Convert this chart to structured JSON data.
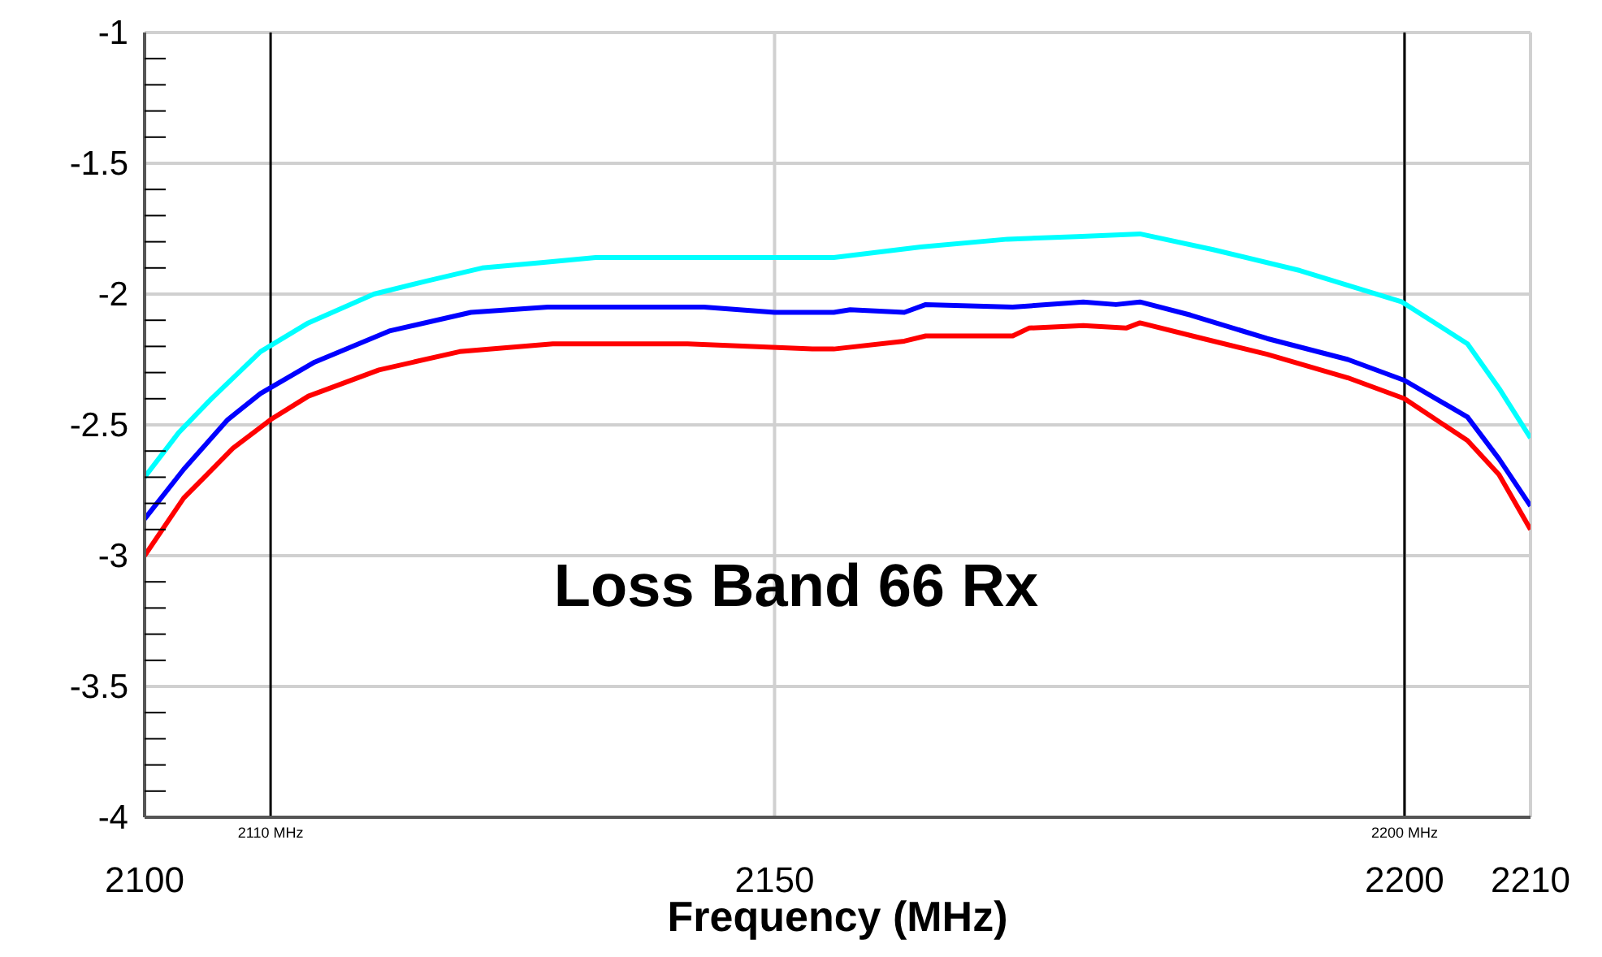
{
  "chart_data": {
    "type": "line",
    "annotations": [
      "Loss Band 66 Rx"
    ],
    "xlabel": "Frequency (MHz)",
    "xlim": [
      2100,
      2210
    ],
    "xticks": [
      2100,
      2150,
      2200,
      2210
    ],
    "ylim": [
      -4,
      -1
    ],
    "yticks": [
      -1,
      {
        "value": -1.1,
        "label": null
      },
      {
        "value": -1.2,
        "label": null
      },
      {
        "value": -1.3,
        "label": null
      },
      {
        "value": -1.4,
        "label": null
      },
      -1.5,
      {
        "value": -1.6,
        "label": null
      },
      {
        "value": -1.7,
        "label": null
      },
      {
        "value": -1.8,
        "label": null
      },
      {
        "value": -1.9,
        "label": null
      },
      -2,
      {
        "value": -2.1,
        "label": null
      },
      {
        "value": -2.2,
        "label": null
      },
      {
        "value": -2.3,
        "label": null
      },
      {
        "value": -2.4,
        "label": null
      },
      -2.5,
      {
        "value": -2.6,
        "label": null
      },
      {
        "value": -2.7,
        "label": null
      },
      {
        "value": -2.8,
        "label": null
      },
      {
        "value": -2.9,
        "label": null
      },
      -3,
      {
        "value": -3.1,
        "label": null
      },
      {
        "value": -3.2,
        "label": null
      },
      {
        "value": -3.3,
        "label": null
      },
      {
        "value": -3.4,
        "label": null
      },
      -3.5,
      {
        "value": -3.6,
        "label": null
      },
      {
        "value": -3.7,
        "label": null
      },
      {
        "value": -3.8,
        "label": null
      },
      {
        "value": -3.9,
        "label": null
      },
      -4
    ],
    "grid": true,
    "legend": false,
    "marker": "none",
    "line_style": "solid",
    "ref_lines": [
      {
        "axis": "x",
        "value": 2110,
        "label": "2110 MHz",
        "color": "#000000"
      },
      {
        "axis": "x",
        "value": 2200,
        "label": "2200 MHz",
        "color": "#000000"
      }
    ],
    "series": [
      {
        "color": "#00ffff",
        "x": [
          2100,
          2102.7,
          2105.3,
          2109.2,
          2113,
          2118.2,
          2122.4,
          2126.8,
          2131.5,
          2135.8,
          2153,
          2154.7,
          2161.6,
          2168.5,
          2174,
          2179,
          2184.8,
          2191.7,
          2199.8,
          2205,
          2207.5,
          2210
        ],
        "values": [
          -2.7,
          -2.53,
          -2.4,
          -2.22,
          -2.11,
          -2.0,
          -1.95,
          -1.9,
          -1.88,
          -1.86,
          -1.86,
          -1.86,
          -1.82,
          -1.79,
          -1.78,
          -1.77,
          -1.83,
          -1.91,
          -2.03,
          -2.19,
          -2.36,
          -2.55
        ]
      },
      {
        "color": "#0000ff",
        "x": [
          2100,
          2103.1,
          2106.6,
          2109.2,
          2113.5,
          2119.5,
          2125.9,
          2132,
          2144.4,
          2150,
          2154.7,
          2156,
          2160.3,
          2162,
          2168.9,
          2174.5,
          2177.1,
          2179,
          2183,
          2189.1,
          2195.5,
          2200,
          2205,
          2207.5,
          2210
        ],
        "values": [
          -2.86,
          -2.67,
          -2.48,
          -2.38,
          -2.26,
          -2.14,
          -2.07,
          -2.05,
          -2.05,
          -2.07,
          -2.07,
          -2.06,
          -2.07,
          -2.04,
          -2.05,
          -2.03,
          -2.04,
          -2.03,
          -2.08,
          -2.17,
          -2.25,
          -2.33,
          -2.47,
          -2.63,
          -2.81
        ]
      },
      {
        "color": "#ff0000",
        "x": [
          2100,
          2103.1,
          2107,
          2110,
          2113,
          2118.6,
          2125,
          2132.4,
          2143.1,
          2153,
          2154.7,
          2160.3,
          2162,
          2168.9,
          2170.2,
          2174.5,
          2177.9,
          2179,
          2184,
          2189.1,
          2195.5,
          2200,
          2205,
          2207.5,
          2210
        ],
        "values": [
          -3.0,
          -2.78,
          -2.59,
          -2.48,
          -2.39,
          -2.29,
          -2.22,
          -2.19,
          -2.19,
          -2.21,
          -2.21,
          -2.18,
          -2.16,
          -2.16,
          -2.13,
          -2.12,
          -2.13,
          -2.11,
          -2.17,
          -2.23,
          -2.32,
          -2.4,
          -2.56,
          -2.69,
          -2.9
        ]
      }
    ]
  }
}
